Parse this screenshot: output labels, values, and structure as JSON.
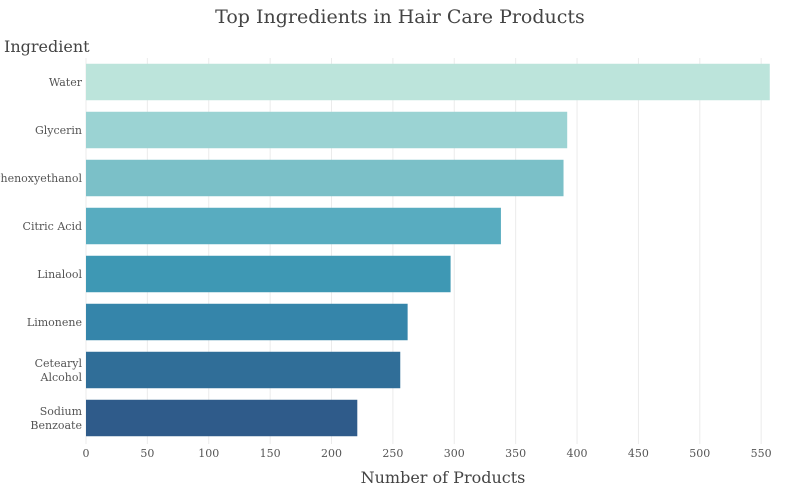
{
  "chart_data": {
    "type": "bar",
    "orientation": "horizontal",
    "title": "Top Ingredients in Hair Care Products",
    "xlabel": "Number of Products",
    "ylabel": "Ingredient",
    "categories": [
      "Water",
      "Glycerin",
      "Phenoxyethanol",
      "Citric Acid",
      "Linalool",
      "Limonene",
      "Cetearyl Alcohol",
      "Sodium Benzoate"
    ],
    "values": [
      557,
      392,
      389,
      338,
      297,
      262,
      256,
      221
    ],
    "xlim": [
      0,
      580
    ],
    "xticks": [
      0,
      50,
      100,
      150,
      200,
      250,
      300,
      350,
      400,
      450,
      500,
      550
    ],
    "grid": true,
    "colors": [
      "#bce4db",
      "#9bd3d3",
      "#7bc0c8",
      "#58acc0",
      "#3e98b4",
      "#3585aa",
      "#306e98",
      "#2f5b8a"
    ]
  }
}
